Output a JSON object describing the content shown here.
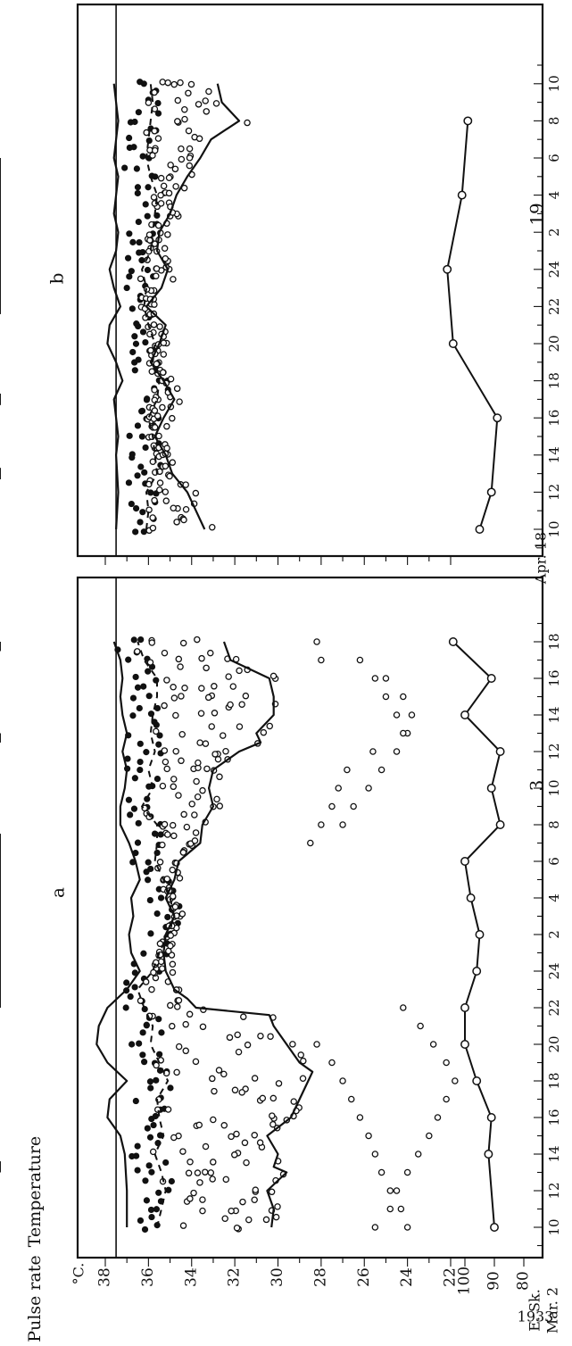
{
  "labels": {
    "subject": "E. Sk.",
    "year": "1933",
    "panel_a_date": "Mar. 2",
    "panel_a_day2": "3",
    "panel_b_date": "Apr. 18",
    "panel_b_day2": "19",
    "unit": "°C.",
    "ylabel_temp": "Temperature",
    "ylabel_pulse": "Pulse rate",
    "panel_a_letter": "a",
    "panel_b_letter": "b"
  },
  "chart_data": [
    {
      "panel": "a",
      "type": "line",
      "title": "",
      "x_ticks": [
        "10",
        "12",
        "14",
        "16",
        "18",
        "20",
        "22",
        "24",
        "2",
        "4",
        "6",
        "8",
        "10",
        "12",
        "14",
        "16",
        "18"
      ],
      "temp_ticks": [
        "38",
        "36",
        "34",
        "32",
        "30",
        "28",
        "26",
        "24",
        "22"
      ],
      "pulse_ticks": [
        "100",
        "90",
        "80"
      ],
      "reference_line_c": 37.5,
      "series": [
        {
          "role": "upper-curve",
          "x": [
            10,
            12,
            14,
            15,
            16,
            17,
            18,
            19,
            20,
            21,
            22,
            23,
            24,
            25,
            26,
            27,
            28,
            29,
            30,
            31,
            32,
            33,
            34,
            35,
            36,
            37,
            38,
            39,
            40,
            41,
            42
          ],
          "y": [
            37.0,
            37.0,
            37.1,
            37.3,
            37.9,
            37.8,
            37.0,
            37.9,
            38.4,
            38.3,
            37.9,
            37.0,
            36.4,
            36.8,
            36.9,
            36.7,
            36.8,
            36.4,
            36.6,
            36.9,
            37.3,
            37.3,
            37.1,
            37.0,
            37.2,
            37.0,
            37.2,
            37.3,
            37.2,
            37.3,
            37.6
          ]
        },
        {
          "role": "mean-curve",
          "x": [
            10,
            11,
            12,
            13,
            14,
            15,
            16,
            17,
            18,
            19,
            20,
            21,
            22,
            23,
            24,
            25,
            26,
            27,
            28,
            29,
            30,
            31,
            32,
            33,
            34,
            35,
            36,
            37,
            38,
            39,
            40,
            41,
            42
          ],
          "y": [
            35.6,
            35.4,
            35.2,
            35.4,
            35.7,
            35.3,
            35.5,
            35.6,
            35.1,
            35.5,
            35.9,
            35.8,
            36.2,
            36.5,
            35.8,
            35.5,
            35.1,
            34.8,
            35.0,
            35.3,
            35.7,
            35.6,
            35.6,
            36.3,
            35.8,
            36.0,
            35.7,
            35.9,
            35.8,
            35.6,
            35.6,
            36.2,
            36.5
          ]
        },
        {
          "role": "lower-curve",
          "x": [
            10,
            11,
            12,
            13,
            13.3,
            14,
            15,
            16,
            17,
            18,
            18.5,
            19,
            20,
            21,
            21.6,
            22,
            22.5,
            23,
            24,
            25,
            26,
            27,
            28,
            29,
            30,
            31,
            32,
            33,
            34,
            35,
            36,
            36.5,
            37,
            38,
            39,
            40,
            41,
            42
          ],
          "y": [
            30.3,
            30.2,
            30.5,
            29.6,
            30.2,
            30.0,
            30.5,
            29.4,
            29.0,
            28.6,
            28.4,
            29.0,
            29.6,
            30.2,
            30.4,
            33.8,
            34.2,
            34.8,
            35.2,
            35.3,
            35.2,
            34.8,
            35.2,
            34.8,
            34.6,
            33.6,
            33.5,
            33.0,
            33.2,
            33.0,
            31.8,
            30.8,
            31.0,
            30.2,
            30.2,
            30.4,
            32.2,
            32.5
          ]
        },
        {
          "role": "pulse-rate",
          "x": [
            10,
            14,
            16,
            18,
            20,
            22,
            24,
            26,
            28,
            30,
            32,
            34,
            36,
            38,
            40,
            42
          ],
          "y": [
            90,
            92,
            91,
            96,
            100,
            100,
            96,
            95,
            98,
            100,
            88,
            91,
            88,
            100,
            91,
            104
          ]
        }
      ],
      "sleep_periods": [
        [
          13,
          13.6
        ],
        [
          22,
          31.5
        ],
        [
          36.5,
          37
        ],
        [
          41.5,
          42
        ]
      ],
      "open_extra": [
        [
          10,
          25.5
        ],
        [
          11,
          24.8
        ],
        [
          12,
          24.5
        ],
        [
          13,
          24.0
        ],
        [
          14,
          23.5
        ],
        [
          15,
          23.0
        ],
        [
          16,
          22.6
        ],
        [
          17,
          22.2
        ],
        [
          18,
          21.8
        ],
        [
          19,
          22.2
        ],
        [
          20,
          22.8
        ],
        [
          21,
          23.4
        ],
        [
          22,
          24.2
        ],
        [
          10,
          24.0
        ],
        [
          11,
          24.3
        ],
        [
          12,
          24.8
        ],
        [
          13,
          25.2
        ],
        [
          14,
          25.5
        ],
        [
          15,
          25.8
        ],
        [
          16,
          26.2
        ],
        [
          17,
          26.6
        ],
        [
          18,
          27.0
        ],
        [
          19,
          27.5
        ],
        [
          20,
          28.2
        ],
        [
          32,
          27.0
        ],
        [
          33,
          26.5
        ],
        [
          34,
          25.8
        ],
        [
          35,
          25.2
        ],
        [
          36,
          24.5
        ],
        [
          37,
          24.0
        ],
        [
          38,
          24.5
        ],
        [
          39,
          25.0
        ],
        [
          40,
          25.5
        ],
        [
          41,
          26.2
        ],
        [
          31,
          28.5
        ],
        [
          32,
          28.0
        ],
        [
          33,
          27.5
        ],
        [
          34,
          27.2
        ],
        [
          35,
          26.8
        ],
        [
          36,
          25.6
        ],
        [
          37,
          24.2
        ],
        [
          38,
          23.8
        ],
        [
          39,
          24.2
        ],
        [
          40,
          25.0
        ],
        [
          41,
          28.0
        ],
        [
          42,
          28.2
        ]
      ]
    },
    {
      "panel": "b",
      "type": "line",
      "title": "",
      "x_ticks": [
        "10",
        "12",
        "14",
        "16",
        "18",
        "20",
        "22",
        "24",
        "2",
        "4",
        "6",
        "8",
        "10"
      ],
      "reference_line_c": 37.5,
      "series": [
        {
          "role": "upper-curve",
          "x": [
            10,
            12,
            14,
            15,
            16,
            17,
            18,
            19,
            20,
            21,
            22,
            23,
            24,
            25,
            26,
            27,
            28,
            29,
            30,
            31,
            32,
            33,
            34
          ],
          "y": [
            37.5,
            37.4,
            37.5,
            37.4,
            37.5,
            37.6,
            37.2,
            37.5,
            37.9,
            37.8,
            37.3,
            37.6,
            37.8,
            37.5,
            37.4,
            37.6,
            37.5,
            37.4,
            37.6,
            37.5,
            37.4,
            37.5,
            37.6
          ]
        },
        {
          "role": "mean-curve",
          "x": [
            10,
            11,
            12,
            13,
            14,
            15,
            16,
            17,
            18,
            19,
            20,
            21,
            22,
            23,
            24,
            25,
            26,
            27,
            28,
            29,
            30,
            31,
            32,
            33,
            34
          ],
          "y": [
            36.1,
            36.0,
            36.1,
            35.6,
            35.7,
            35.8,
            36.0,
            35.6,
            35.5,
            35.8,
            35.7,
            36.0,
            36.2,
            36.1,
            36.3,
            35.9,
            35.8,
            35.7,
            35.6,
            35.9,
            36.1,
            36.0,
            35.9,
            35.8,
            35.9
          ]
        },
        {
          "role": "lower-curve",
          "x": [
            10,
            11,
            12,
            13,
            14,
            15,
            16,
            17,
            18,
            19,
            20,
            21,
            22,
            23,
            24,
            25,
            26,
            27,
            28,
            29,
            30,
            31,
            32,
            33,
            34
          ],
          "y": [
            33.4,
            33.8,
            34.2,
            34.9,
            35.2,
            35.7,
            35.3,
            34.8,
            35.3,
            35.9,
            35.5,
            35.2,
            36.1,
            35.4,
            35.1,
            35.6,
            35.5,
            35.0,
            34.7,
            34.2,
            33.6,
            33.1,
            31.8,
            32.6,
            32.8
          ]
        },
        {
          "role": "pulse-rate",
          "x": [
            10,
            12,
            16,
            20,
            24,
            28,
            32
          ],
          "y": [
            95,
            91,
            89,
            104,
            106,
            101,
            99
          ]
        }
      ],
      "sleep_periods": [
        [
          12.7,
          13.3
        ],
        [
          16.7,
          17.3
        ],
        [
          21.6,
          30
        ]
      ]
    }
  ]
}
